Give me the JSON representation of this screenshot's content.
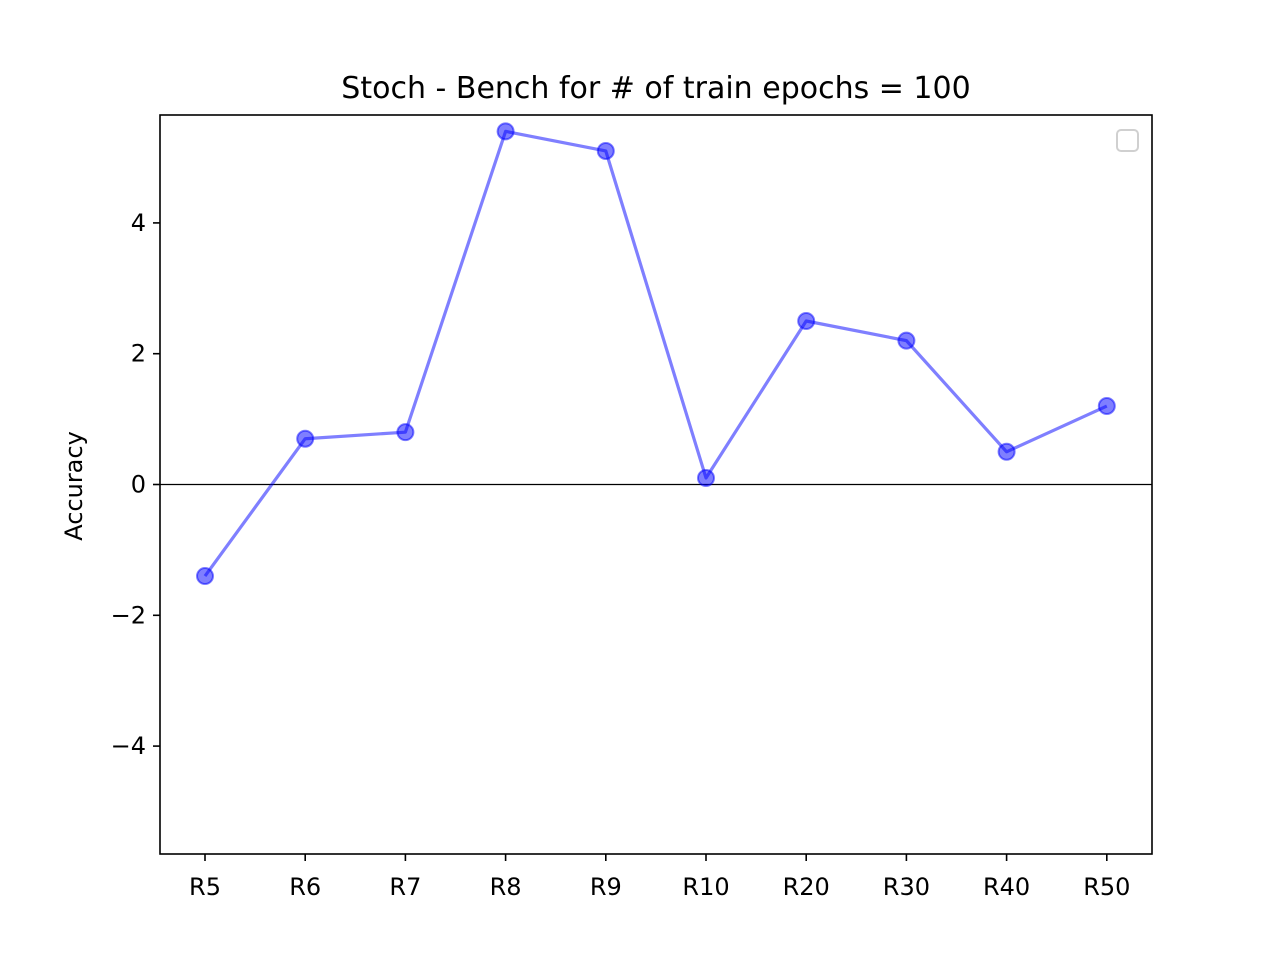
{
  "chart_data": {
    "type": "line",
    "title": "Stoch - Bench for # of train epochs = 100",
    "xlabel": "",
    "ylabel": "Accuracy",
    "categories": [
      "R5",
      "R6",
      "R7",
      "R8",
      "R9",
      "R10",
      "R20",
      "R30",
      "R40",
      "R50"
    ],
    "series": [
      {
        "values": [
          -1.4,
          0.7,
          0.8,
          5.4,
          5.1,
          0.1,
          2.5,
          2.2,
          0.5,
          1.2
        ],
        "color": "#0000ff",
        "marker": "circle",
        "alpha": 0.5
      }
    ],
    "ylim": [
      -5.65,
      5.65
    ],
    "yticks": [
      {
        "value": -4,
        "label": "−4"
      },
      {
        "value": -2,
        "label": "−2"
      },
      {
        "value": 0,
        "label": "0"
      },
      {
        "value": 2,
        "label": "2"
      },
      {
        "value": 4,
        "label": "4"
      }
    ],
    "reference_line": {
      "y": 0,
      "color": "#000000"
    },
    "legend": {
      "placement": "top-right",
      "entries": []
    },
    "grid": false
  }
}
